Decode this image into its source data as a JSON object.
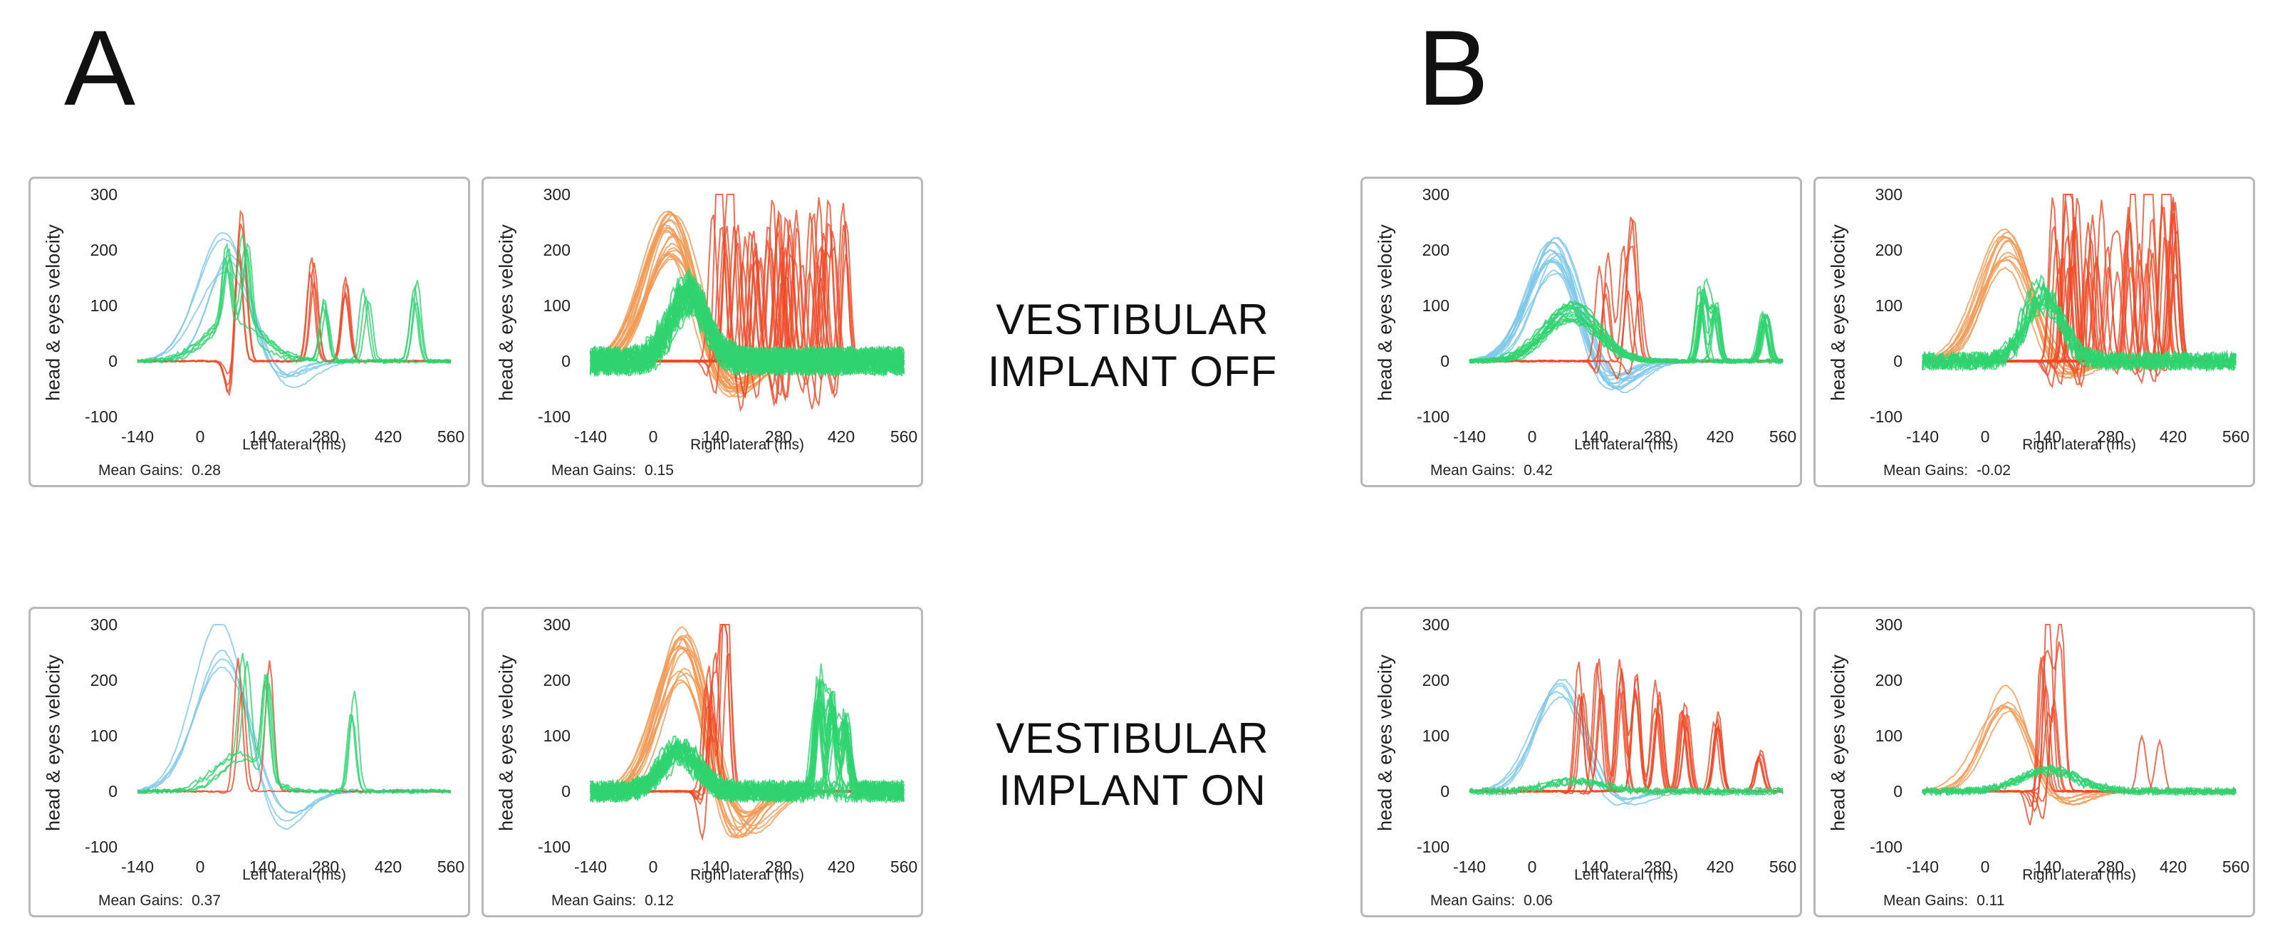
{
  "figure": {
    "panel_a": "A",
    "panel_b": "B",
    "condition_off": [
      "VESTIBULAR",
      "IMPLANT OFF"
    ],
    "condition_on": [
      "VESTIBULAR",
      "IMPLANT ON"
    ],
    "ylabel": "head & eyes velocity",
    "mean_gains_label": "Mean Gains:"
  },
  "colors": {
    "head_left": "#7fc8ea",
    "head_right": "#f39a55",
    "eye_saccade": "#ef4a28",
    "eye_vor": "#2fd36f"
  },
  "chart_data": [
    {
      "id": "A-off-left",
      "type": "line",
      "panel": "A",
      "condition": "VESTIBULAR IMPLANT OFF",
      "xlabel": "Left lateral (ms)",
      "xlim": [
        -140,
        560
      ],
      "ylim": [
        -100,
        300
      ],
      "xticks": [
        -140,
        0,
        140,
        280,
        420,
        560
      ],
      "yticks": [
        300,
        200,
        100,
        0,
        -100
      ],
      "mean_gain": "0.28",
      "series": [
        {
          "color_key": "head_left",
          "count": 5,
          "peak_x": 60,
          "peak_y": 205,
          "width": 55,
          "rebound": -50
        },
        {
          "color_key": "eye_saccade",
          "count": 4,
          "spikes": [
            [
              80,
              230
            ],
            [
              100,
              180
            ],
            [
              250,
              190
            ],
            [
              330,
              160
            ]
          ],
          "dip": -90
        },
        {
          "color_key": "eye_vor",
          "count": 5,
          "peak_x": 80,
          "peak_y": 80,
          "width": 60,
          "spikes": [
            [
              60,
              140
            ],
            [
              100,
              165
            ],
            [
              280,
              120
            ],
            [
              370,
              140
            ],
            [
              480,
              150
            ]
          ]
        }
      ]
    },
    {
      "id": "A-off-right",
      "type": "line",
      "panel": "A",
      "condition": "VESTIBULAR IMPLANT OFF",
      "xlabel": "Right lateral (ms)",
      "xlim": [
        -140,
        560
      ],
      "ylim": [
        -100,
        300
      ],
      "xticks": [
        -140,
        0,
        140,
        280,
        420,
        560
      ],
      "yticks": [
        300,
        200,
        100,
        0,
        -100
      ],
      "mean_gain": "0.15",
      "series": [
        {
          "color_key": "head_right",
          "count": 22,
          "peak_x": 40,
          "peak_y": 230,
          "width": 55,
          "rebound": -70
        },
        {
          "color_key": "eye_saccade",
          "count": 30,
          "spike_range": [
            120,
            440
          ],
          "spike_max": 300,
          "dip": -100
        },
        {
          "color_key": "eye_vor",
          "count": 30,
          "peak_x": 80,
          "peak_y": 120,
          "width": 40,
          "noise": 40
        }
      ]
    },
    {
      "id": "B-off-left",
      "type": "line",
      "panel": "B",
      "condition": "VESTIBULAR IMPLANT OFF",
      "xlabel": "Left lateral (ms)",
      "xlim": [
        -140,
        560
      ],
      "ylim": [
        -100,
        300
      ],
      "xticks": [
        -140,
        0,
        140,
        280,
        420,
        560
      ],
      "yticks": [
        300,
        200,
        100,
        0,
        -100
      ],
      "mean_gain": "0.42",
      "series": [
        {
          "color_key": "head_left",
          "count": 14,
          "peak_x": 50,
          "peak_y": 190,
          "width": 55,
          "rebound": -60
        },
        {
          "color_key": "eye_saccade",
          "count": 6,
          "spike_range": [
            150,
            240
          ],
          "spike_max": 230,
          "dip": -40
        },
        {
          "color_key": "eye_vor",
          "count": 16,
          "peak_x": 90,
          "peak_y": 90,
          "width": 60,
          "spikes": [
            [
              380,
              140
            ],
            [
              410,
              110
            ],
            [
              520,
              90
            ]
          ]
        }
      ]
    },
    {
      "id": "B-off-right",
      "type": "line",
      "panel": "B",
      "condition": "VESTIBULAR IMPLANT OFF",
      "xlabel": "Right lateral (ms)",
      "xlim": [
        -140,
        560
      ],
      "ylim": [
        -100,
        300
      ],
      "xticks": [
        -140,
        0,
        140,
        280,
        420,
        560
      ],
      "yticks": [
        300,
        200,
        100,
        0,
        -100
      ],
      "mean_gain": "-0.02",
      "series": [
        {
          "color_key": "head_right",
          "count": 12,
          "peak_x": 50,
          "peak_y": 200,
          "width": 55,
          "rebound": -40
        },
        {
          "color_key": "eye_saccade",
          "count": 30,
          "spike_range": [
            140,
            430
          ],
          "spike_max": 300,
          "dip": -60
        },
        {
          "color_key": "eye_vor",
          "count": 14,
          "peak_x": 130,
          "peak_y": 120,
          "width": 40,
          "noise": 25
        }
      ]
    },
    {
      "id": "A-on-left",
      "type": "line",
      "panel": "A",
      "condition": "VESTIBULAR IMPLANT ON",
      "xlabel": "Left lateral (ms)",
      "xlim": [
        -140,
        560
      ],
      "ylim": [
        -100,
        300
      ],
      "xticks": [
        -140,
        0,
        140,
        280,
        420,
        560
      ],
      "yticks": [
        300,
        200,
        100,
        0,
        -100
      ],
      "mean_gain": "0.37",
      "series": [
        {
          "color_key": "head_left",
          "count": 4,
          "peak_x": 50,
          "peak_y": 270,
          "width": 60,
          "rebound": -90
        },
        {
          "color_key": "eye_saccade",
          "count": 2,
          "spikes": [
            [
              90,
              250
            ],
            [
              160,
              290
            ]
          ],
          "dip": -10
        },
        {
          "color_key": "eye_vor",
          "count": 4,
          "peak_x": 90,
          "peak_y": 60,
          "width": 50,
          "spikes": [
            [
              100,
              250
            ],
            [
              150,
              220
            ],
            [
              340,
              190
            ]
          ]
        }
      ]
    },
    {
      "id": "A-on-right",
      "type": "line",
      "panel": "A",
      "condition": "VESTIBULAR IMPLANT ON",
      "xlabel": "Right lateral (ms)",
      "xlim": [
        -140,
        560
      ],
      "ylim": [
        -100,
        300
      ],
      "xticks": [
        -140,
        0,
        140,
        280,
        420,
        560
      ],
      "yticks": [
        300,
        200,
        100,
        0,
        -100
      ],
      "mean_gain": "0.12",
      "series": [
        {
          "color_key": "head_right",
          "count": 16,
          "peak_x": 70,
          "peak_y": 250,
          "width": 55,
          "rebound": -90
        },
        {
          "color_key": "eye_saccade",
          "count": 8,
          "spike_range": [
            110,
            170
          ],
          "spike_max": 300,
          "dip": -100
        },
        {
          "color_key": "eye_vor",
          "count": 24,
          "peak_x": 60,
          "peak_y": 70,
          "width": 40,
          "noise": 30,
          "spikes": [
            [
              370,
              210
            ],
            [
              400,
              170
            ],
            [
              430,
              140
            ]
          ]
        }
      ]
    },
    {
      "id": "B-on-left",
      "type": "line",
      "panel": "B",
      "condition": "VESTIBULAR IMPLANT ON",
      "xlabel": "Left lateral (ms)",
      "xlim": [
        -140,
        560
      ],
      "ylim": [
        -100,
        300
      ],
      "xticks": [
        -140,
        0,
        140,
        280,
        420,
        560
      ],
      "yticks": [
        300,
        200,
        100,
        0,
        -100
      ],
      "mean_gain": "0.06",
      "series": [
        {
          "color_key": "head_left",
          "count": 5,
          "peak_x": 60,
          "peak_y": 170,
          "width": 55,
          "rebound": -30
        },
        {
          "color_key": "eye_saccade",
          "count": 8,
          "spikes": [
            [
              110,
              240
            ],
            [
              150,
              250
            ],
            [
              200,
              240
            ],
            [
              230,
              230
            ],
            [
              280,
              200
            ],
            [
              340,
              160
            ],
            [
              410,
              150
            ],
            [
              510,
              80
            ]
          ],
          "dip": -10
        },
        {
          "color_key": "eye_vor",
          "count": 5,
          "peak_x": 100,
          "peak_y": 20,
          "width": 60,
          "noise": 10
        }
      ]
    },
    {
      "id": "B-on-right",
      "type": "line",
      "panel": "B",
      "condition": "VESTIBULAR IMPLANT ON",
      "xlabel": "Right lateral (ms)",
      "xlim": [
        -140,
        560
      ],
      "ylim": [
        -100,
        300
      ],
      "xticks": [
        -140,
        0,
        140,
        280,
        420,
        560
      ],
      "yticks": [
        300,
        200,
        100,
        0,
        -100
      ],
      "mean_gain": "0.11",
      "series": [
        {
          "color_key": "head_right",
          "count": 6,
          "peak_x": 50,
          "peak_y": 170,
          "width": 55,
          "rebound": -30
        },
        {
          "color_key": "eye_saccade",
          "count": 8,
          "spike_range": [
            120,
            170
          ],
          "spike_max": 300,
          "dip": -80,
          "extra": [
            [
              350,
              100
            ],
            [
              390,
              90
            ]
          ]
        },
        {
          "color_key": "eye_vor",
          "count": 8,
          "peak_x": 140,
          "peak_y": 35,
          "width": 60,
          "noise": 10
        }
      ]
    }
  ]
}
